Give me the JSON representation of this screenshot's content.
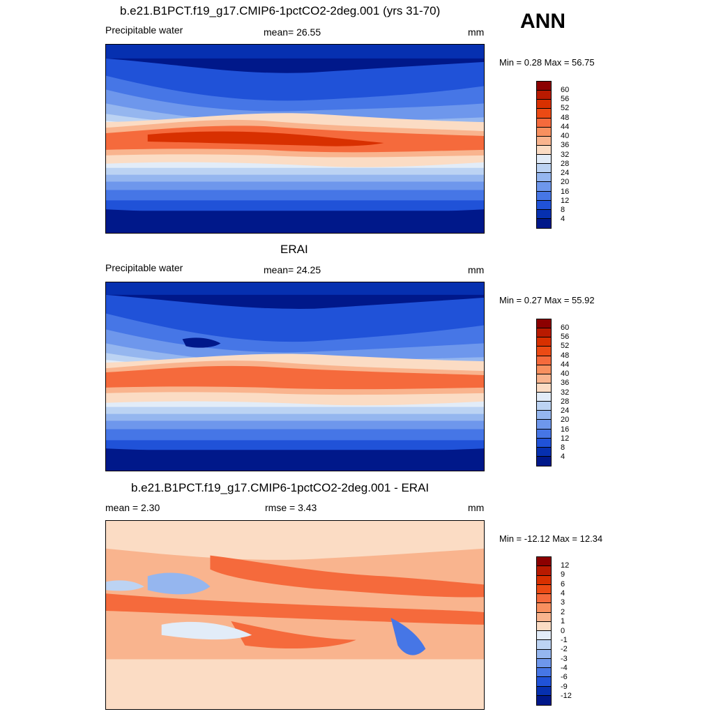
{
  "season": "ANN",
  "panels": [
    {
      "title": "b.e21.B1PCT.f19_g17.CMIP6-1pctCO2-2deg.001 (yrs 31-70)",
      "left_label": "Precipitable water",
      "center_label": "mean=  26.55",
      "units": "mm",
      "minmax": "Min =   0.28 Max =  56.75"
    },
    {
      "title": "ERAI",
      "left_label": "Precipitable water",
      "center_label": "mean=  24.25",
      "units": "mm",
      "minmax": "Min =   0.27 Max =  55.92"
    },
    {
      "title": "b.e21.B1PCT.f19_g17.CMIP6-1pctCO2-2deg.001 - ERAI",
      "left_label": "mean =   2.30",
      "center_label": "rmse =   3.43",
      "units": "mm",
      "minmax": "Min = -12.12 Max =  12.34"
    }
  ],
  "colorbars": {
    "field": {
      "labels": [
        "60",
        "56",
        "52",
        "48",
        "44",
        "40",
        "36",
        "32",
        "28",
        "24",
        "20",
        "16",
        "12",
        "8",
        "4"
      ],
      "colors": [
        "#8c0000",
        "#b81a00",
        "#d83000",
        "#ec4a14",
        "#f56a3c",
        "#f8905f",
        "#f9b48e",
        "#fbdcc4",
        "#e2ecf8",
        "#bcd3f3",
        "#95b6ef",
        "#6e97ec",
        "#4676e6",
        "#2052d8",
        "#0630b0",
        "#00188a"
      ]
    },
    "diff": {
      "labels": [
        "12",
        "9",
        "6",
        "4",
        "3",
        "2",
        "1",
        "0",
        "-1",
        "-2",
        "-3",
        "-4",
        "-6",
        "-9",
        "-12"
      ],
      "colors": [
        "#8c0000",
        "#b81a00",
        "#d83000",
        "#ec4a14",
        "#f56a3c",
        "#f8905f",
        "#f9b48e",
        "#fbdcc4",
        "#e2ecf8",
        "#bcd3f3",
        "#95b6ef",
        "#6e97ec",
        "#4676e6",
        "#2052d8",
        "#0630b0",
        "#00188a"
      ]
    }
  }
}
